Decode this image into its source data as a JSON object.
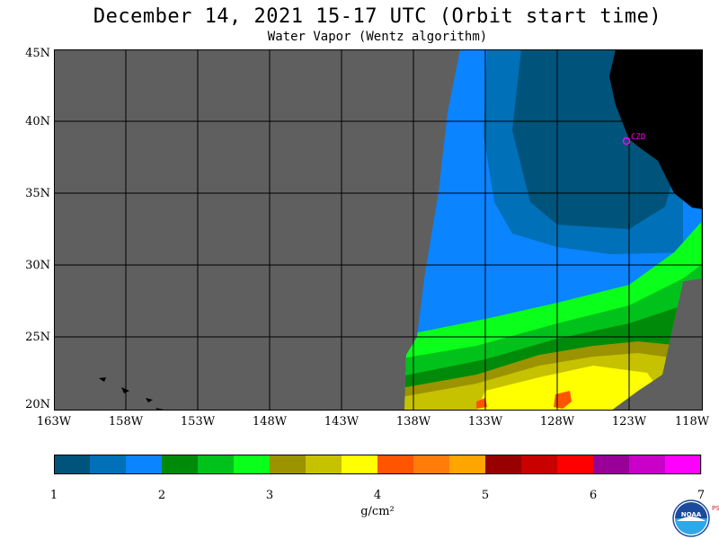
{
  "title": "December 14, 2021  15-17 UTC  (Orbit start time)",
  "subtitle": "Water Vapor (Wentz algorithm)",
  "map": {
    "lat_labels": [
      "45N",
      "40N",
      "35N",
      "30N",
      "25N",
      "20N"
    ],
    "lon_labels": [
      "163W",
      "158W",
      "153W",
      "148W",
      "143W",
      "138W",
      "133W",
      "128W",
      "123W",
      "118W"
    ],
    "station_label": "CZD",
    "colors": {
      "no_data": "#5f5f5f",
      "land": "#000000",
      "grid": "#000000",
      "station": "#ff00ff"
    }
  },
  "colorbar": {
    "tick_labels": [
      "1",
      "2",
      "3",
      "4",
      "5",
      "6",
      "7"
    ],
    "unit": "g/cm²",
    "colors": [
      "#00537a",
      "#0070b8",
      "#0a84ff",
      "#008a0a",
      "#00c21a",
      "#0aff1a",
      "#9b9300",
      "#c6c200",
      "#ffff00",
      "#ff5500",
      "#ff7c0a",
      "#ffa500",
      "#980000",
      "#c80000",
      "#ff0000",
      "#980098",
      "#c800c8",
      "#ff00ff"
    ]
  },
  "logo": {
    "text": "NOAA",
    "side_text": "PSL"
  }
}
